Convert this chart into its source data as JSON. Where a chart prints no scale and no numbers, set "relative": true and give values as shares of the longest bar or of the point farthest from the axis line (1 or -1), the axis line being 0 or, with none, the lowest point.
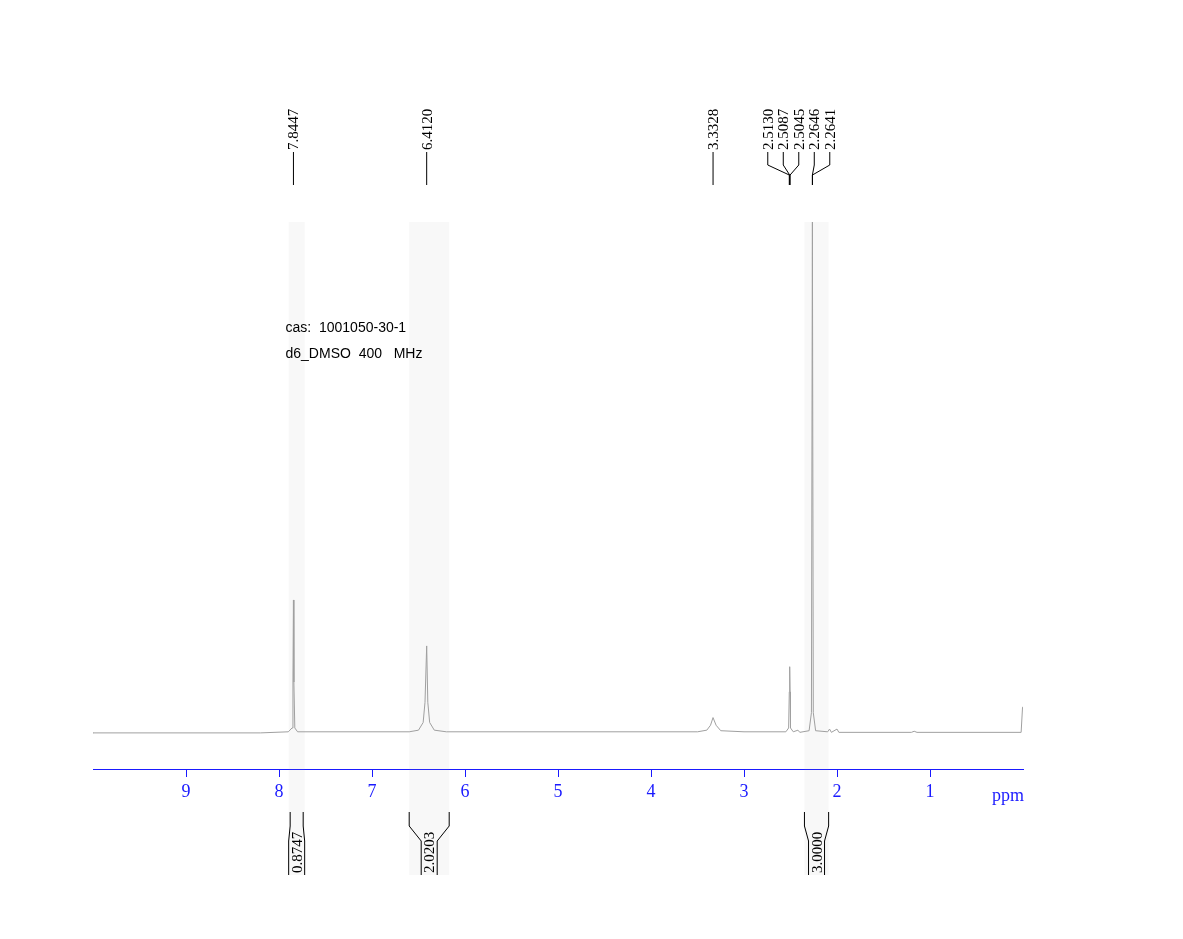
{
  "chart_data": {
    "type": "line",
    "relative": true,
    "xlabel": "ppm",
    "xlim": [
      10,
      0
    ],
    "xticks": [
      9,
      8,
      7,
      6,
      5,
      4,
      3,
      2,
      1
    ],
    "tick_labels": "x",
    "grid": false,
    "legend": false,
    "marker": "none",
    "line_style": "solid",
    "series": [
      {
        "color": "#a0a0a0",
        "x": [
          10,
          8.2,
          7.9,
          7.86,
          7.85,
          7.8447,
          7.84,
          7.83,
          7.8,
          6.6,
          6.5,
          6.45,
          6.43,
          6.412,
          6.4,
          6.38,
          6.33,
          6.2,
          3.5,
          3.4,
          3.36,
          3.333,
          3.3,
          3.25,
          3.0,
          2.55,
          2.52,
          2.513,
          2.5087,
          2.5045,
          2.5,
          2.47,
          2.42,
          2.4,
          2.3,
          2.275,
          2.2646,
          2.2641,
          2.255,
          2.23,
          2.1,
          2.08,
          2.06,
          2.0,
          1.98,
          1.2,
          1.17,
          1.14,
          0.02,
          0.005,
          0
        ],
        "values": [
          0.066,
          0.066,
          0.068,
          0.075,
          0.159,
          0.309,
          0.159,
          0.075,
          0.068,
          0.068,
          0.071,
          0.085,
          0.122,
          0.225,
          0.122,
          0.085,
          0.071,
          0.068,
          0.068,
          0.071,
          0.08,
          0.094,
          0.08,
          0.07,
          0.068,
          0.068,
          0.075,
          0.141,
          0.187,
          0.141,
          0.075,
          0.068,
          0.071,
          0.067,
          0.07,
          0.103,
          1,
          1,
          0.103,
          0.07,
          0.068,
          0.073,
          0.067,
          0.073,
          0.067,
          0.067,
          0.069,
          0.067,
          0.067,
          0.113,
          0.113
        ]
      }
    ],
    "annotations": [
      {
        "text": "7.8447",
        "x": 7.8447
      },
      {
        "text": "6.4120",
        "x": 6.412
      },
      {
        "text": "3.3328",
        "x": 3.3328
      },
      {
        "text": "2.5130",
        "x": 2.513
      },
      {
        "text": "2.5087",
        "x": 2.5087
      },
      {
        "text": "2.5045",
        "x": 2.5045
      },
      {
        "text": "2.2646",
        "x": 2.2646
      },
      {
        "text": "2.2641",
        "x": 2.2641
      },
      "cas:  1001050-30-1",
      "d6_DMSO  400   MHz"
    ],
    "bands": [
      {
        "axis": "x",
        "from": 7.88,
        "to": 7.74,
        "label": "0.8747"
      },
      {
        "axis": "x",
        "from": 6.6,
        "to": 6.17,
        "label": "2.0203"
      },
      {
        "axis": "x",
        "from": 2.35,
        "to": 2.09,
        "label": "3.0000"
      }
    ]
  }
}
